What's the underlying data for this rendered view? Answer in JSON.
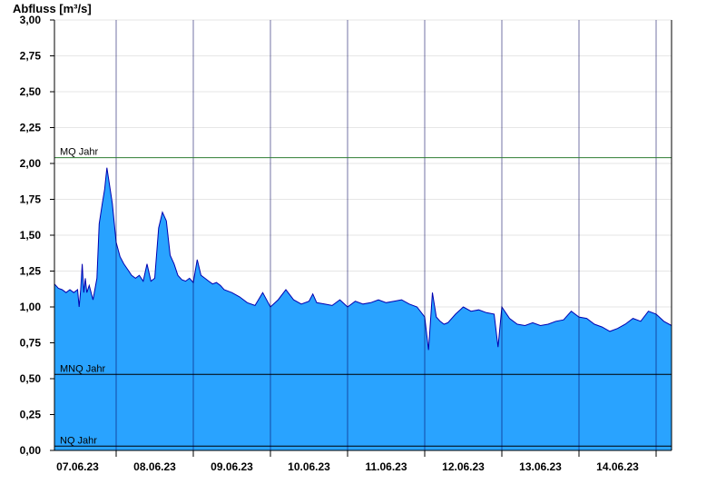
{
  "chart_data": {
    "type": "area",
    "title": "",
    "ylabel": "Abfluss [m³/s]",
    "xlabel": "",
    "ylim": [
      0,
      3.0
    ],
    "yticks": [
      "0,00",
      "0,25",
      "0,50",
      "0,75",
      "1,00",
      "1,25",
      "1,50",
      "1,75",
      "2,00",
      "2,25",
      "2,50",
      "2,75",
      "3,00"
    ],
    "ytick_values": [
      0,
      0.25,
      0.5,
      0.75,
      1.0,
      1.25,
      1.5,
      1.75,
      2.0,
      2.25,
      2.5,
      2.75,
      3.0
    ],
    "xlim": [
      -0.8,
      7.2
    ],
    "xticks": [
      "07.06.23",
      "08.06.23",
      "09.06.23",
      "10.06.23",
      "11.06.23",
      "12.06.23",
      "13.06.23",
      "14.06.23"
    ],
    "xtick_positions": [
      -0.5,
      0.5,
      1.5,
      2.5,
      3.5,
      4.5,
      5.5,
      6.5
    ],
    "grid": true,
    "fill_color": "#29A3FF",
    "line_color": "#0000B0",
    "reference_lines": [
      {
        "label": "MQ Jahr",
        "value": 2.04,
        "color": "#2E7D32"
      },
      {
        "label": "MNQ Jahr",
        "value": 0.53,
        "color": "#000000"
      },
      {
        "label": "NQ Jahr",
        "value": 0.03,
        "color": "#000000"
      }
    ],
    "series": [
      {
        "x": [
          -0.8,
          -0.75,
          -0.7,
          -0.65,
          -0.6,
          -0.55,
          -0.5,
          -0.48,
          -0.46,
          -0.44,
          -0.42,
          -0.4,
          -0.38,
          -0.35,
          -0.3,
          -0.25,
          -0.22,
          -0.2,
          -0.18,
          -0.15,
          -0.12,
          -0.1,
          -0.05,
          0.0,
          0.05,
          0.1,
          0.15,
          0.2,
          0.25,
          0.3,
          0.35,
          0.4,
          0.45,
          0.5,
          0.55,
          0.6,
          0.65,
          0.7,
          0.75,
          0.8,
          0.85,
          0.9,
          0.95,
          1.0,
          1.05,
          1.1,
          1.15,
          1.2,
          1.25,
          1.3,
          1.35,
          1.4,
          1.5,
          1.6,
          1.7,
          1.8,
          1.9,
          2.0,
          2.1,
          2.2,
          2.3,
          2.4,
          2.5,
          2.55,
          2.6,
          2.7,
          2.8,
          2.9,
          3.0,
          3.1,
          3.2,
          3.3,
          3.4,
          3.5,
          3.6,
          3.7,
          3.8,
          3.9,
          4.0,
          4.05,
          4.1,
          4.15,
          4.2,
          4.25,
          4.3,
          4.4,
          4.5,
          4.6,
          4.7,
          4.8,
          4.9,
          4.95,
          5.0,
          5.1,
          5.2,
          5.3,
          5.4,
          5.5,
          5.6,
          5.7,
          5.8,
          5.9,
          6.0,
          6.1,
          6.2,
          6.3,
          6.4,
          6.5,
          6.6,
          6.7,
          6.8,
          6.9,
          7.0,
          7.1,
          7.2
        ],
        "values": [
          1.16,
          1.13,
          1.12,
          1.1,
          1.12,
          1.1,
          1.12,
          1.0,
          1.12,
          1.3,
          1.1,
          1.2,
          1.1,
          1.15,
          1.05,
          1.2,
          1.58,
          1.65,
          1.72,
          1.82,
          1.97,
          1.9,
          1.72,
          1.45,
          1.35,
          1.3,
          1.26,
          1.22,
          1.2,
          1.22,
          1.18,
          1.3,
          1.18,
          1.2,
          1.55,
          1.66,
          1.6,
          1.36,
          1.3,
          1.22,
          1.19,
          1.18,
          1.2,
          1.17,
          1.33,
          1.22,
          1.2,
          1.18,
          1.16,
          1.17,
          1.15,
          1.12,
          1.1,
          1.07,
          1.03,
          1.01,
          1.1,
          1.0,
          1.05,
          1.12,
          1.05,
          1.02,
          1.04,
          1.09,
          1.03,
          1.02,
          1.01,
          1.05,
          1.0,
          1.04,
          1.02,
          1.03,
          1.05,
          1.03,
          1.04,
          1.05,
          1.02,
          1.0,
          0.93,
          0.7,
          1.1,
          0.93,
          0.9,
          0.88,
          0.89,
          0.95,
          1.0,
          0.97,
          0.98,
          0.96,
          0.95,
          0.72,
          1.0,
          0.92,
          0.88,
          0.87,
          0.89,
          0.87,
          0.88,
          0.9,
          0.91,
          0.97,
          0.93,
          0.92,
          0.88,
          0.86,
          0.83,
          0.85,
          0.88,
          0.92,
          0.9,
          0.97,
          0.95,
          0.9,
          0.87
        ]
      }
    ]
  }
}
